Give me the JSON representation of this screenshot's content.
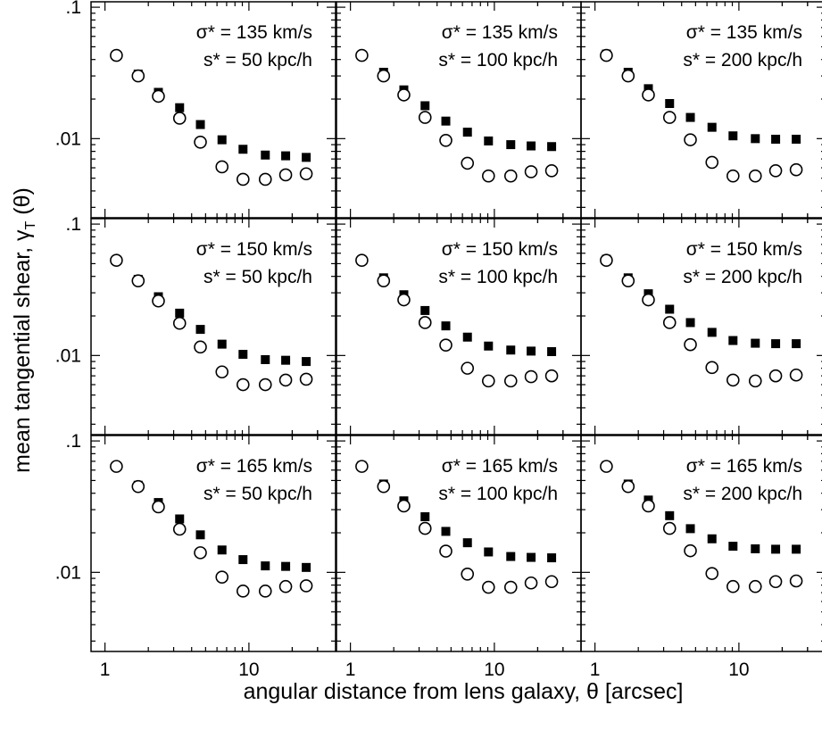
{
  "figure": {
    "xlabel": "angular distance from lens galaxy, θ [arcsec]",
    "ylabel_main": "mean tangential shear, γ",
    "ylabel_sub": "T",
    "ylabel_end": " (θ)"
  },
  "chart_data": {
    "type": "scatter",
    "xscale": "log",
    "yscale": "log",
    "xlim": [
      0.8,
      40
    ],
    "ylim": [
      0.0025,
      0.11
    ],
    "x_tick_labels": [
      "1",
      "10"
    ],
    "y_tick_labels": [
      ".1",
      ".01"
    ],
    "theta": [
      1.2,
      1.7,
      2.35,
      3.3,
      4.6,
      6.5,
      9.1,
      13,
      18,
      25
    ],
    "grid": false,
    "legend": "none",
    "panels": [
      {
        "row": 0,
        "col": 0,
        "label_sigma": "σ* = 135 km/s",
        "label_s": "s* = 50 kpc/h",
        "series": [
          {
            "marker": "filled-square",
            "values": [
              0.043,
              0.031,
              0.0225,
              0.0172,
              0.0128,
              0.0098,
              0.0083,
              0.0075,
              0.0074,
              0.0072
            ]
          },
          {
            "marker": "open-circle",
            "values": [
              0.043,
              0.03,
              0.021,
              0.0143,
              0.0094,
              0.0061,
              0.0049,
              0.0049,
              0.0053,
              0.0054
            ]
          }
        ]
      },
      {
        "row": 0,
        "col": 1,
        "label_sigma": "σ* = 135 km/s",
        "label_s": "s* = 100 kpc/h",
        "series": [
          {
            "marker": "filled-square",
            "values": [
              0.043,
              0.032,
              0.0235,
              0.0178,
              0.0136,
              0.0112,
              0.0096,
              0.009,
              0.0088,
              0.0087
            ]
          },
          {
            "marker": "open-circle",
            "values": [
              0.043,
              0.03,
              0.0215,
              0.0145,
              0.0097,
              0.0065,
              0.0052,
              0.0052,
              0.0056,
              0.0057
            ]
          }
        ]
      },
      {
        "row": 0,
        "col": 2,
        "label_sigma": "σ* = 135 km/s",
        "label_s": "s* = 200 kpc/h",
        "series": [
          {
            "marker": "filled-square",
            "values": [
              0.044,
              0.032,
              0.024,
              0.0185,
              0.0145,
              0.0122,
              0.0105,
              0.01,
              0.0099,
              0.0099
            ]
          },
          {
            "marker": "open-circle",
            "values": [
              0.043,
              0.03,
              0.0215,
              0.0145,
              0.0098,
              0.0066,
              0.0052,
              0.0052,
              0.0057,
              0.0058
            ]
          }
        ]
      },
      {
        "row": 1,
        "col": 0,
        "label_sigma": "σ* = 150 km/s",
        "label_s": "s* = 50 kpc/h",
        "series": [
          {
            "marker": "filled-square",
            "values": [
              0.053,
              0.038,
              0.028,
              0.021,
              0.0158,
              0.0122,
              0.0102,
              0.0093,
              0.0092,
              0.009
            ]
          },
          {
            "marker": "open-circle",
            "values": [
              0.053,
              0.037,
              0.026,
              0.0176,
              0.0116,
              0.0075,
              0.006,
              0.006,
              0.0065,
              0.0066
            ]
          }
        ]
      },
      {
        "row": 1,
        "col": 1,
        "label_sigma": "σ* = 150 km/s",
        "label_s": "s* = 100 kpc/h",
        "series": [
          {
            "marker": "filled-square",
            "values": [
              0.053,
              0.039,
              0.029,
              0.022,
              0.0168,
              0.0138,
              0.0118,
              0.011,
              0.0108,
              0.0107
            ]
          },
          {
            "marker": "open-circle",
            "values": [
              0.053,
              0.037,
              0.0265,
              0.0178,
              0.012,
              0.008,
              0.0064,
              0.0064,
              0.0069,
              0.007
            ]
          }
        ]
      },
      {
        "row": 1,
        "col": 2,
        "label_sigma": "σ* = 150 km/s",
        "label_s": "s* = 200 kpc/h",
        "series": [
          {
            "marker": "filled-square",
            "values": [
              0.054,
              0.039,
              0.0295,
              0.0225,
              0.0178,
              0.015,
              0.013,
              0.0124,
              0.0123,
              0.0123
            ]
          },
          {
            "marker": "open-circle",
            "values": [
              0.053,
              0.037,
              0.0265,
              0.0178,
              0.0121,
              0.0081,
              0.0065,
              0.0064,
              0.007,
              0.0071
            ]
          }
        ]
      },
      {
        "row": 2,
        "col": 0,
        "label_sigma": "σ* = 165 km/s",
        "label_s": "s* = 50 kpc/h",
        "series": [
          {
            "marker": "filled-square",
            "values": [
              0.064,
              0.046,
              0.034,
              0.0255,
              0.0193,
              0.0148,
              0.0125,
              0.0112,
              0.0111,
              0.0109
            ]
          },
          {
            "marker": "open-circle",
            "values": [
              0.064,
              0.045,
              0.0315,
              0.0213,
              0.0141,
              0.0092,
              0.0072,
              0.0072,
              0.0078,
              0.0079
            ]
          }
        ]
      },
      {
        "row": 2,
        "col": 1,
        "label_sigma": "σ* = 165 km/s",
        "label_s": "s* = 100 kpc/h",
        "series": [
          {
            "marker": "filled-square",
            "values": [
              0.065,
              0.047,
              0.035,
              0.0265,
              0.0205,
              0.0168,
              0.0143,
              0.0132,
              0.013,
              0.0129
            ]
          },
          {
            "marker": "open-circle",
            "values": [
              0.064,
              0.045,
              0.032,
              0.0216,
              0.0145,
              0.0097,
              0.0077,
              0.0077,
              0.0083,
              0.0085
            ]
          }
        ]
      },
      {
        "row": 2,
        "col": 2,
        "label_sigma": "σ* = 165 km/s",
        "label_s": "s* = 200 kpc/h",
        "series": [
          {
            "marker": "filled-square",
            "values": [
              0.065,
              0.047,
              0.0355,
              0.027,
              0.0215,
              0.018,
              0.0158,
              0.0151,
              0.015,
              0.015
            ]
          },
          {
            "marker": "open-circle",
            "values": [
              0.064,
              0.045,
              0.032,
              0.0216,
              0.0146,
              0.0098,
              0.0078,
              0.0078,
              0.0085,
              0.0086
            ]
          }
        ]
      }
    ]
  }
}
